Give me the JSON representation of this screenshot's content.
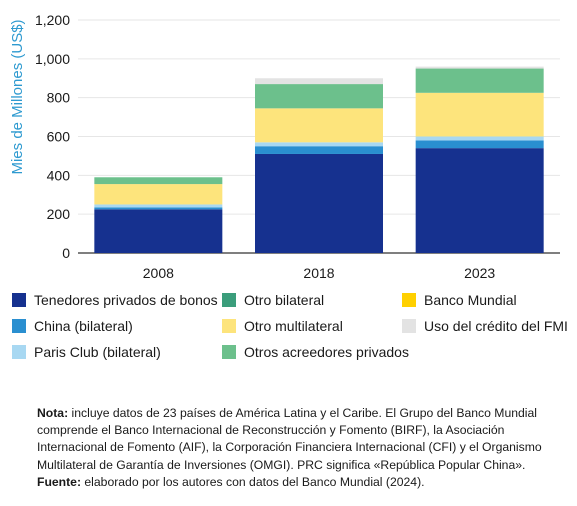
{
  "chart_data": {
    "type": "bar",
    "stacked": true,
    "categories": [
      "2008",
      "2018",
      "2023"
    ],
    "ylabel": "Mies de Millones (US$)",
    "ylim": [
      0,
      1200
    ],
    "yticks": [
      "0",
      "200",
      "400",
      "600",
      "800",
      "1,000",
      "1,200"
    ],
    "grid": true,
    "legend_position": "bottom",
    "series": [
      {
        "name": "Tenedores privados de bonos",
        "color": "#16318f",
        "values": [
          225,
          510,
          540
        ]
      },
      {
        "name": "China (bilateral)",
        "color": "#2a8fd0",
        "values": [
          10,
          40,
          40
        ]
      },
      {
        "name": "Paris Club (bilateral)",
        "color": "#a8d8f2",
        "values": [
          15,
          20,
          20
        ]
      },
      {
        "name": "Otro multilateral",
        "color": "#fde47c",
        "values": [
          105,
          175,
          225
        ]
      },
      {
        "name": "Banco Mundial",
        "color": "#ffd000",
        "values": [
          0,
          0,
          0
        ]
      },
      {
        "name": "Otro bilateral",
        "color": "#3b9d7b",
        "values": [
          0,
          0,
          0
        ]
      },
      {
        "name": "Otros acreedores privados",
        "color": "#6cc08c",
        "values": [
          35,
          125,
          125
        ]
      },
      {
        "name": "Uso del crédito del FMI",
        "color": "#e3e3e3",
        "values": [
          0,
          30,
          10
        ]
      }
    ]
  },
  "legend": {
    "items": [
      {
        "label": "Tenedores privados de bonos",
        "color": "#16318f"
      },
      {
        "label": "Otro bilateral",
        "color": "#3b9d7b"
      },
      {
        "label": "Banco Mundial",
        "color": "#ffd000"
      },
      {
        "label": "China (bilateral)",
        "color": "#2a8fd0"
      },
      {
        "label": "Otro multilateral",
        "color": "#fde47c"
      },
      {
        "label": "Uso del crédito del FMI",
        "color": "#e3e3e3"
      },
      {
        "label": "Paris Club (bilateral)",
        "color": "#a8d8f2"
      },
      {
        "label": "Otros acreedores privados",
        "color": "#6cc08c"
      }
    ]
  },
  "note": {
    "label": "Nota:",
    "text": " incluye datos de 23 países de América Latina y el Caribe. El Grupo del Banco Mundial comprende el Banco Internacional de Reconstrucción y Fomento (BIRF), la Asociación Internacional de Fomento (AIF), la Corporación Financiera Internacional (CFI) y el Organismo Multilateral de Garantía de Inversiones (OMGI). PRC significa «República Popular China»."
  },
  "source": {
    "label": "Fuente:",
    "text": " elaborado por los autores con datos del Banco Mundial (2024)."
  }
}
